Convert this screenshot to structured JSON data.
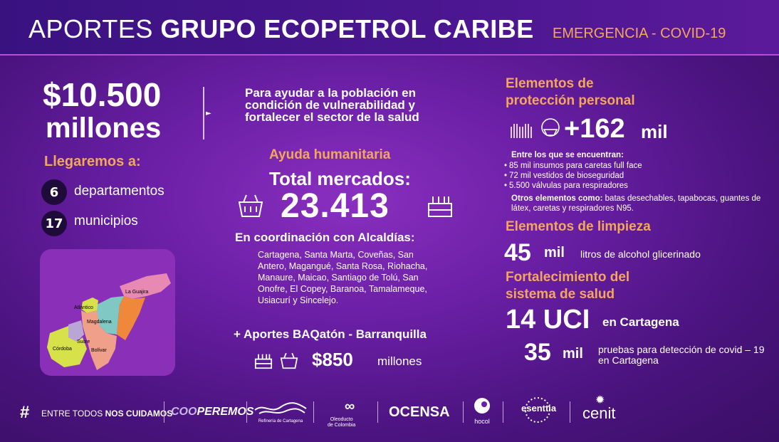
{
  "header": {
    "title_light": "APORTES",
    "title_bold": "GRUPO ECOPETROL CARIBE",
    "subtitle": "EMERGENCIA - COVID-19"
  },
  "summary": {
    "amount": "$10.500",
    "amount_unit": "millones",
    "llegaremos_label": "Llegaremos a:",
    "departments_count": "6",
    "departments_label": "departamentos",
    "municipalities_count": "17",
    "municipalities_label": "municipios"
  },
  "map": {
    "labels": [
      "La Guajira",
      "Atlántico",
      "Magdalena",
      "Sucre",
      "Córdoba",
      "Bolívar"
    ],
    "colors": {
      "guajira": "#e889b4",
      "atlantico": "#d7e24a",
      "magdalena": "#7fc8c4",
      "cesar": "#f0883c",
      "sucre": "#b9a6d6",
      "cordoba": "#d7e24a",
      "bolivar": "#f0a08a"
    }
  },
  "intro": {
    "line1": "Para ayudar a la población en",
    "line2": "condición de vulnerabilidad y",
    "line3": "fortalecer el sector de la salud"
  },
  "humanitarian": {
    "title": "Ayuda humanitaria",
    "total_label": "Total mercados:",
    "total_value": "23.413",
    "coordination_label": "En coordinación con Alcaldías:",
    "cities": "Cartagena, Santa Marta, Coveñas, San Antero, Magangué, Santa Rosa, Riohacha, Manaure, Maicao, Santiago de Tolú, San Onofre, El Copey, Baranoa, Tamalameque, Usiacurí y Sincelejo.",
    "baq_label": "+ Aportes BAQatón - Barranquilla",
    "baq_amount": "$850",
    "baq_unit": "millones"
  },
  "epp": {
    "title_line1": "Elementos de",
    "title_line2": "protección personal",
    "value": "+162",
    "unit": "mil",
    "includes_label": "Entre los que se encuentran:",
    "items": [
      "85 mil insumos para caretas full face",
      "72 mil vestidos de bioseguridad",
      "5.500  válvulas para respiradores"
    ],
    "others_bold": "Otros elementos como:",
    "others_text": " batas desechables, tapabocas, guantes de látex, caretas y respiradores N95."
  },
  "cleaning": {
    "title": "Elementos de limpieza",
    "value": "45",
    "unit": "mil",
    "description": "litros de alcohol glicerinado"
  },
  "health": {
    "title_line1": "Fortalecimiento del",
    "title_line2": "sistema de salud",
    "uci_value": "14 UCI",
    "uci_desc": "en Cartagena",
    "tests_value": "35",
    "tests_unit": "mil",
    "tests_desc": "pruebas para detección de covid – 19 en Cartagena"
  },
  "footer": {
    "hashtag_prefix": "ENTRE TODOS",
    "hashtag_bold": "NOS CUIDAMOS",
    "cooperemos_a": "COO",
    "cooperemos_b": "PEREMOS",
    "refineria": "Refinería de Cartagena",
    "oleoducto_l1": "Oleoducto",
    "oleoducto_l2": "de Colombia",
    "ocensa": "OCENSA",
    "hocol": "hocol",
    "esenttia": "esenttia",
    "cenit": "cenit"
  },
  "colors": {
    "accent_orange": "#f4a75a",
    "header_bg": "#3a1280",
    "background": "#6a1fa5"
  }
}
